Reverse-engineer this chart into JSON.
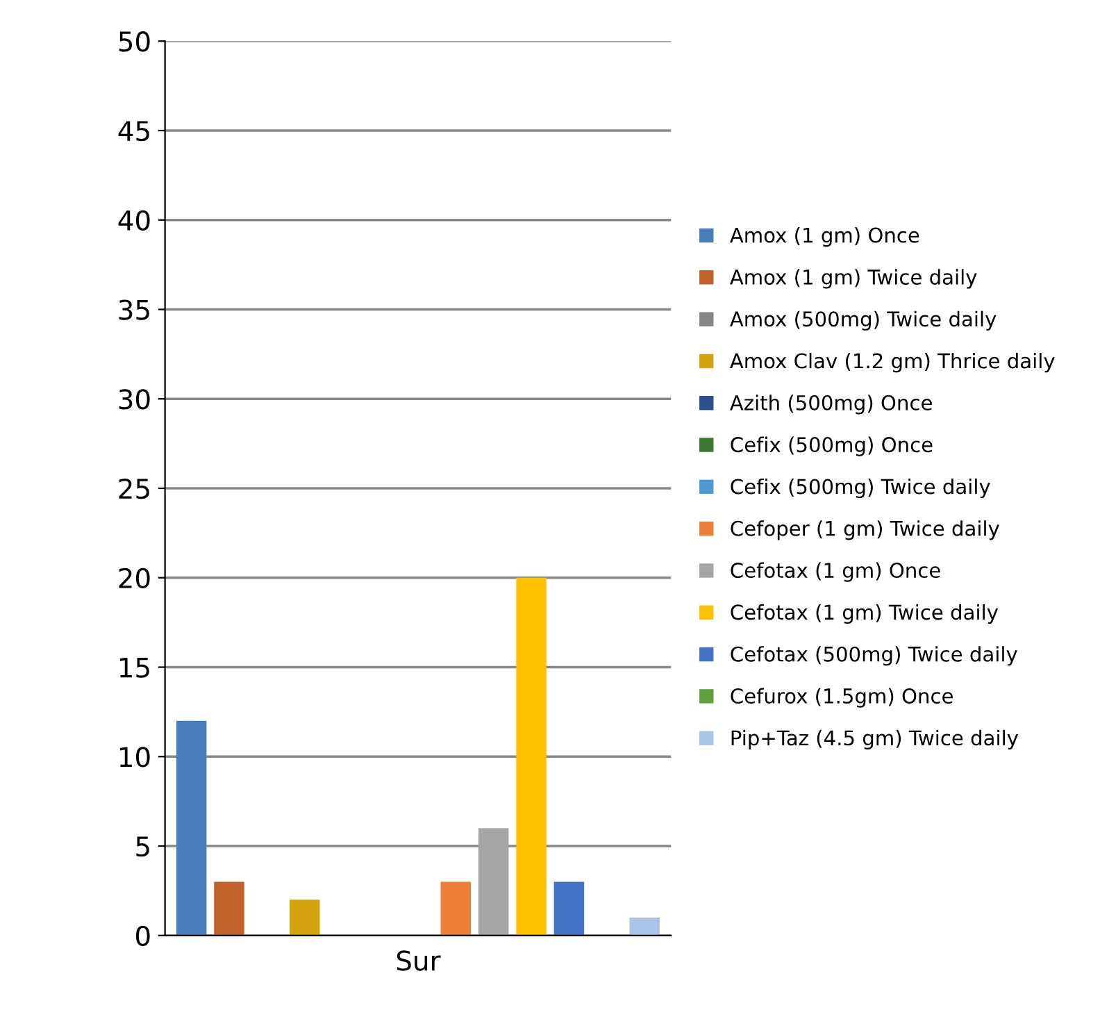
{
  "chart_data": {
    "type": "bar",
    "xlabel": "Sur",
    "categories": [
      null,
      null,
      null,
      null,
      null,
      null,
      null,
      null,
      null,
      null,
      null,
      null,
      null
    ],
    "series": [
      {
        "name": "Amox (1 gm) Once",
        "color": "#4a7ebb",
        "values": [
          12,
          null,
          null,
          null,
          null,
          null,
          null,
          null,
          null,
          null,
          null,
          null,
          null
        ]
      },
      {
        "name": "Amox (1 gm) Twice daily",
        "color": "#c0622a",
        "values": [
          null,
          3,
          null,
          null,
          null,
          null,
          null,
          null,
          null,
          null,
          null,
          null,
          null
        ]
      },
      {
        "name": "Amox (500mg) Twice daily",
        "color": "#868686",
        "values": [
          null,
          null,
          0,
          null,
          null,
          null,
          null,
          null,
          null,
          null,
          null,
          null,
          null
        ]
      },
      {
        "name": "Amox Clav (1.2 gm) Thrice daily",
        "color": "#d4a20c",
        "values": [
          null,
          null,
          null,
          2,
          null,
          null,
          null,
          null,
          null,
          null,
          null,
          null,
          null
        ]
      },
      {
        "name": "Azith (500mg) Once",
        "color": "#2a4f8f",
        "values": [
          null,
          null,
          null,
          null,
          0,
          null,
          null,
          null,
          null,
          null,
          null,
          null,
          null
        ]
      },
      {
        "name": "Cefix (500mg) Once",
        "color": "#3d7a30",
        "values": [
          null,
          null,
          null,
          null,
          null,
          0,
          null,
          null,
          null,
          null,
          null,
          null,
          null
        ]
      },
      {
        "name": "Cefix (500mg) Twice daily",
        "color": "#4f9ad4",
        "values": [
          null,
          null,
          null,
          null,
          null,
          null,
          0,
          null,
          null,
          null,
          null,
          null,
          null
        ]
      },
      {
        "name": "Cefoper (1 gm) Twice daily",
        "color": "#ee7d37",
        "values": [
          null,
          null,
          null,
          null,
          null,
          null,
          null,
          3,
          null,
          null,
          null,
          null,
          null
        ]
      },
      {
        "name": "Cefotax (1 gm) Once",
        "color": "#a5a5a5",
        "values": [
          null,
          null,
          null,
          null,
          null,
          null,
          null,
          null,
          6,
          null,
          null,
          null,
          null
        ]
      },
      {
        "name": "Cefotax (1 gm) Twice daily",
        "color": "#ffc000",
        "values": [
          null,
          null,
          null,
          null,
          null,
          null,
          null,
          null,
          null,
          20,
          null,
          null,
          null
        ]
      },
      {
        "name": "Cefotax (500mg) Twice daily",
        "color": "#4472c4",
        "values": [
          null,
          null,
          null,
          null,
          null,
          null,
          null,
          null,
          null,
          null,
          3,
          null,
          null
        ]
      },
      {
        "name": "Cefurox (1.5gm) Once",
        "color": "#5fa13f",
        "values": [
          null,
          null,
          null,
          null,
          null,
          null,
          null,
          null,
          null,
          null,
          null,
          0,
          null
        ]
      },
      {
        "name": "Pip+Taz (4.5 gm) Twice daily",
        "color": "#a9c4e8",
        "values": [
          null,
          null,
          null,
          null,
          null,
          null,
          null,
          null,
          null,
          null,
          null,
          null,
          1
        ]
      }
    ],
    "ylim": [
      0,
      50
    ],
    "yticks": [
      0,
      5,
      10,
      15,
      20,
      25,
      30,
      35,
      40,
      45,
      50
    ],
    "grid": "y",
    "legend": "right"
  }
}
